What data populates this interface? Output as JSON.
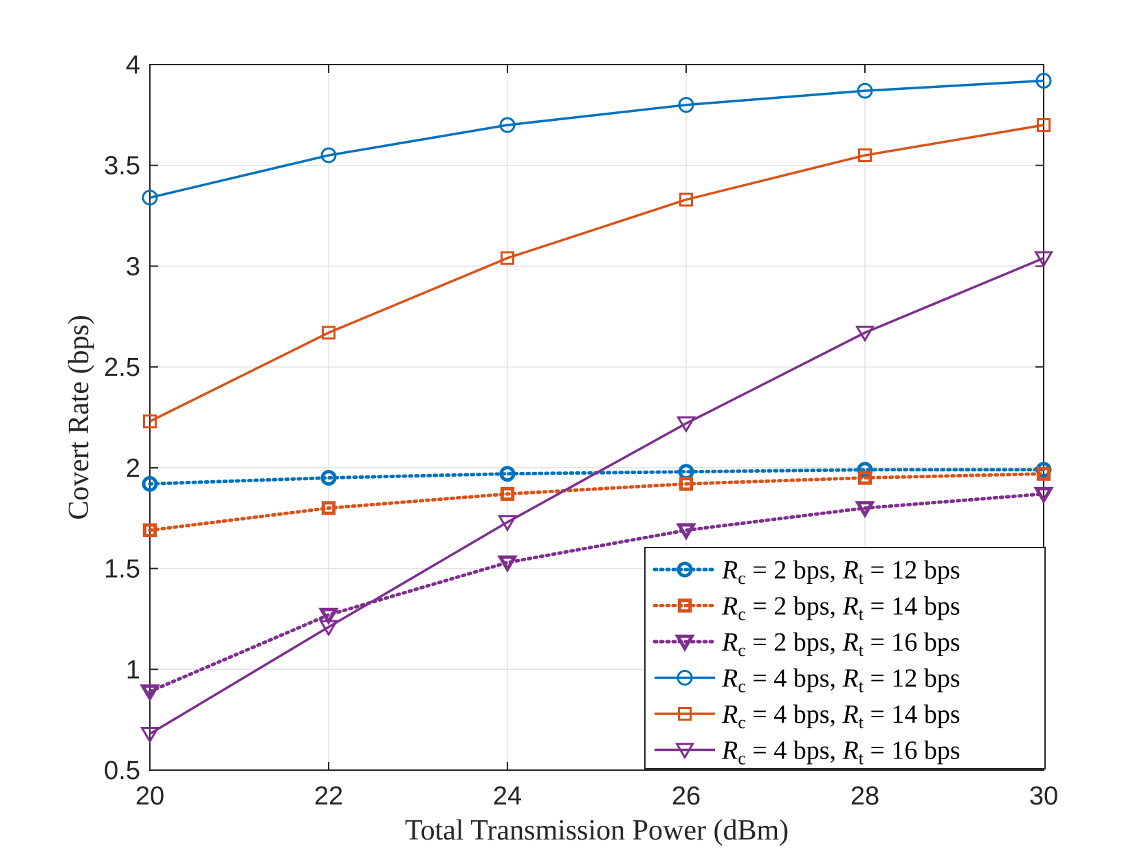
{
  "chart_data": {
    "type": "line",
    "title": "",
    "xlabel": "Total Transmission Power (dBm)",
    "ylabel": "Covert Rate (bps)",
    "xlim": [
      20,
      30
    ],
    "ylim": [
      0.5,
      4
    ],
    "xticks": [
      20,
      22,
      24,
      26,
      28,
      30
    ],
    "yticks": [
      0.5,
      1,
      1.5,
      2,
      2.5,
      3,
      3.5,
      4
    ],
    "xtick_labels": [
      "20",
      "22",
      "24",
      "26",
      "28",
      "30"
    ],
    "ytick_labels": [
      "0.5",
      "1",
      "1.5",
      "2",
      "2.5",
      "3",
      "3.5",
      "4"
    ],
    "grid": true,
    "legend_position": "bottom-right",
    "x": [
      20,
      22,
      24,
      26,
      28,
      30
    ],
    "series": [
      {
        "name": "R_c = 2 bps, R_t = 12 bps",
        "rc": "2",
        "rt": "12",
        "color": "#0072BD",
        "marker": "circle",
        "line": "dotted",
        "values": [
          1.92,
          1.95,
          1.97,
          1.98,
          1.99,
          1.99
        ]
      },
      {
        "name": "R_c = 2 bps, R_t = 14 bps",
        "rc": "2",
        "rt": "14",
        "color": "#D95319",
        "marker": "square",
        "line": "dotted",
        "values": [
          1.69,
          1.8,
          1.87,
          1.92,
          1.95,
          1.97
        ]
      },
      {
        "name": "R_c = 2 bps, R_t = 16 bps",
        "rc": "2",
        "rt": "16",
        "color": "#7E2F8E",
        "marker": "triangle-down",
        "line": "dotted",
        "values": [
          0.89,
          1.27,
          1.53,
          1.69,
          1.8,
          1.87
        ]
      },
      {
        "name": "R_c = 4 bps, R_t = 12 bps",
        "rc": "4",
        "rt": "12",
        "color": "#0072BD",
        "marker": "circle",
        "line": "solid",
        "values": [
          3.34,
          3.55,
          3.7,
          3.8,
          3.87,
          3.92
        ]
      },
      {
        "name": "R_c = 4 bps, R_t = 14 bps",
        "rc": "4",
        "rt": "14",
        "color": "#D95319",
        "marker": "square",
        "line": "solid",
        "values": [
          2.23,
          2.67,
          3.04,
          3.33,
          3.55,
          3.7
        ]
      },
      {
        "name": "R_c = 4 bps, R_t = 16 bps",
        "rc": "4",
        "rt": "16",
        "color": "#7E2F8E",
        "marker": "triangle-down",
        "line": "solid",
        "values": [
          0.68,
          1.21,
          1.73,
          2.22,
          2.67,
          3.04
        ]
      }
    ],
    "legend": {
      "r_symbol": "R",
      "c_sub": "c",
      "t_sub": "t",
      "equals": "=",
      "unit": "bps,",
      "unit_end": "bps"
    }
  }
}
